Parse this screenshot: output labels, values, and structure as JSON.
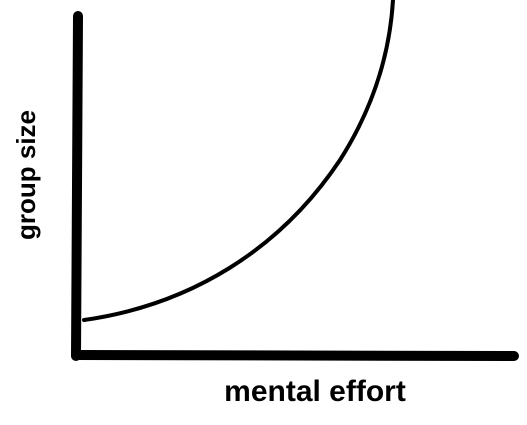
{
  "x_axis_label": "mental effort",
  "y_axis_label": "group size"
}
